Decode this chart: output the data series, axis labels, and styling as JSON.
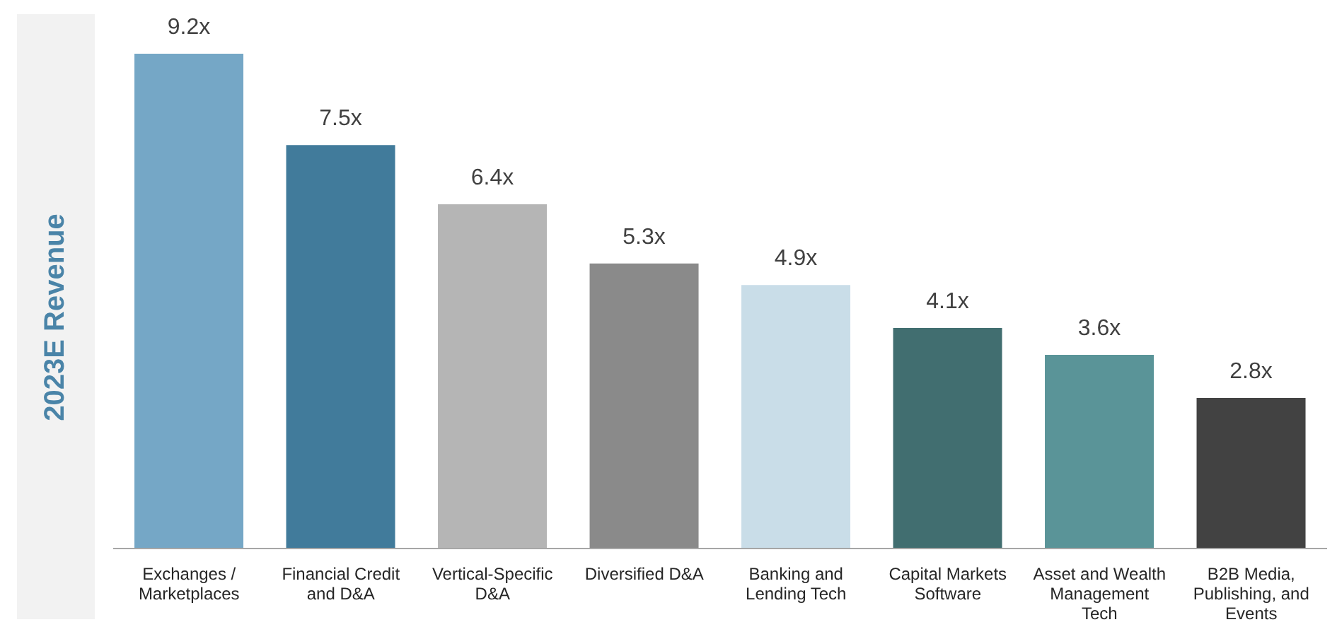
{
  "chart_data": {
    "type": "bar",
    "ylabel": "2023E Revenue",
    "categories": [
      "Exchanges / Marketplaces",
      "Financial Credit and D&A",
      "Vertical-Specific D&A",
      "Diversified D&A",
      "Banking and Lending Tech",
      "Capital Markets Software",
      "Asset and Wealth Management Tech",
      "B2B Media, Publishing, and Events"
    ],
    "values": [
      9.2,
      7.5,
      6.4,
      5.3,
      4.9,
      4.1,
      3.6,
      2.8
    ],
    "colors": [
      "#75a7c6",
      "#417b9b",
      "#b5b5b5",
      "#8a8a8a",
      "#c9dde8",
      "#416e70",
      "#5a9498",
      "#424242"
    ],
    "value_labels": [
      "9.2x",
      "7.5x",
      "6.4x",
      "5.3x",
      "4.9x",
      "4.1x",
      "3.6x",
      "2.8x"
    ],
    "grid": false,
    "tick_labels": "x"
  }
}
